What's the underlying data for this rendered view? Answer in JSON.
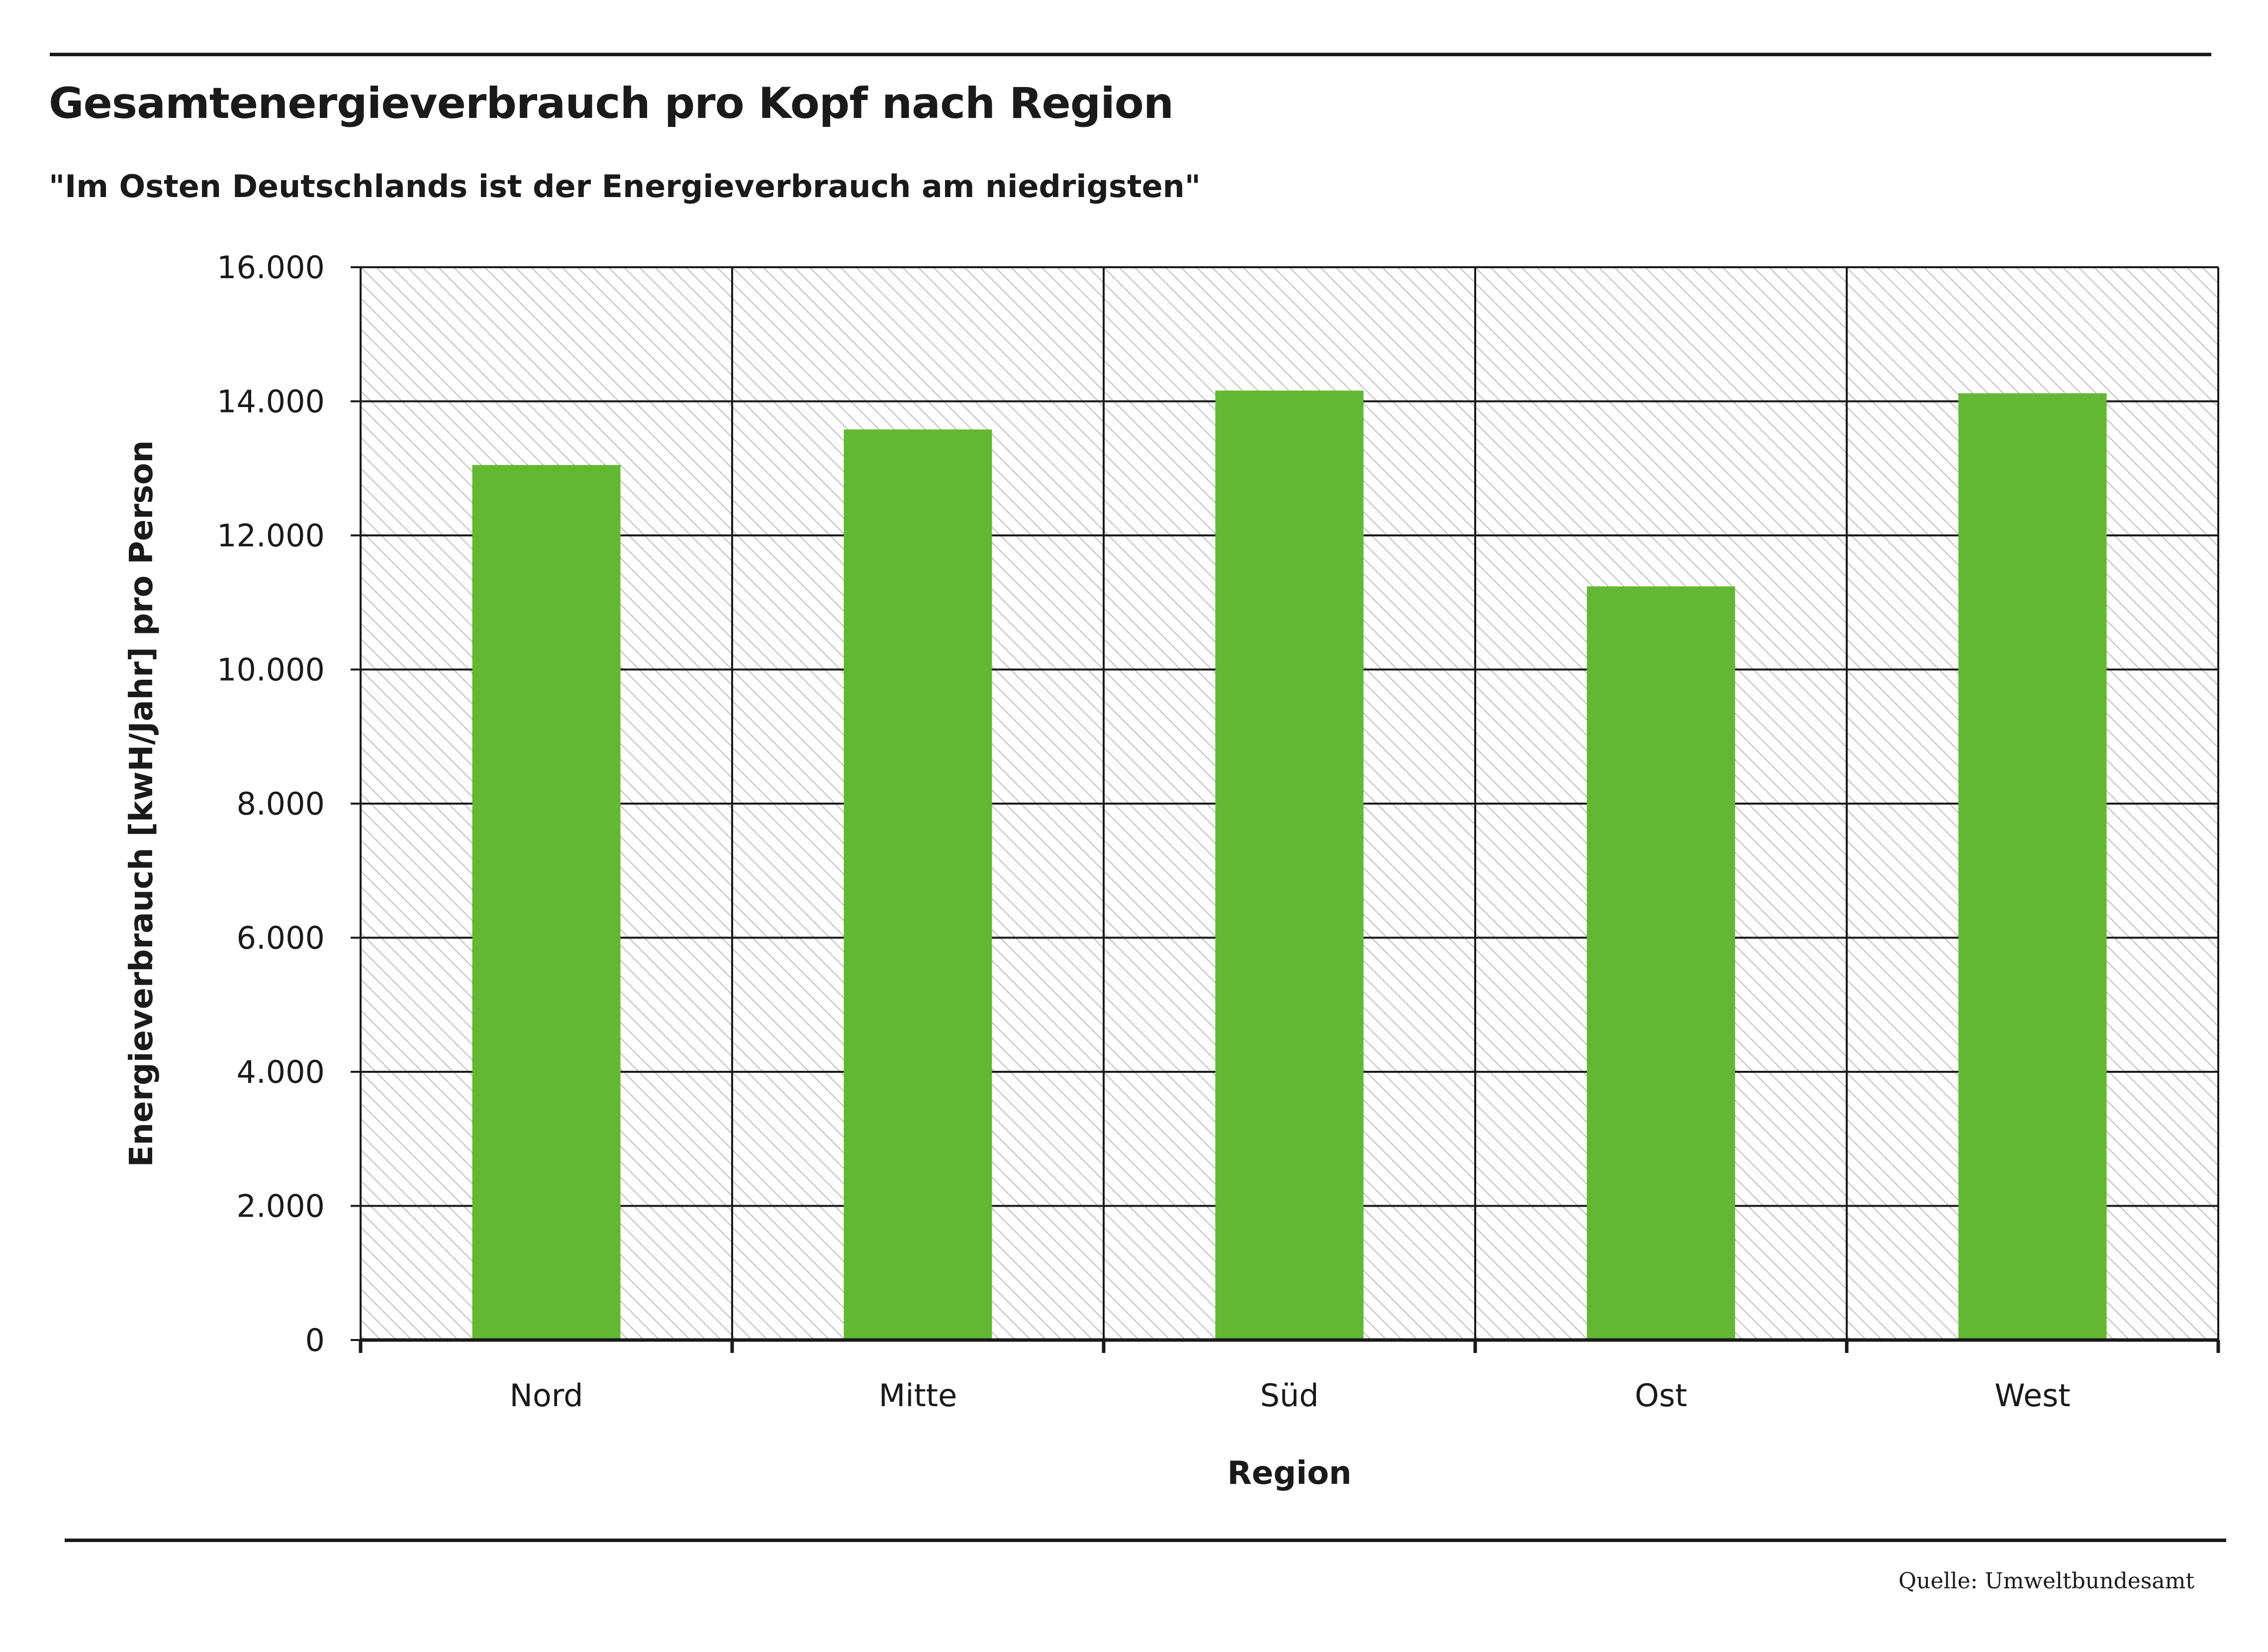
{
  "title": "Gesamtenergieverbrauch pro Kopf nach Region",
  "subtitle": "\"Im Osten Deutschlands ist der Energieverbrauch am niedrigsten\"",
  "source": "Quelle: Umweltbundesamt",
  "colors": {
    "bar": "#62b832",
    "grid": "#1a1a1a",
    "hatch": "#c8c8c8"
  },
  "chart_data": {
    "type": "bar",
    "title": "Gesamtenergieverbrauch pro Kopf nach Region",
    "subtitle": "\"Im Osten Deutschlands ist der Energieverbrauch am niedrigsten\"",
    "xlabel": "Region",
    "ylabel": "Energieverbrauch [kwH/Jahr] pro Person",
    "categories": [
      "Nord",
      "Mitte",
      "Süd",
      "Ost",
      "West"
    ],
    "values": [
      13050,
      13580,
      14160,
      11240,
      14120
    ],
    "ylim": [
      0,
      16000
    ],
    "yticks": [
      0,
      2000,
      4000,
      6000,
      8000,
      10000,
      12000,
      14000,
      16000
    ],
    "ytick_labels": [
      "0",
      "2.000",
      "4.000",
      "6.000",
      "8.000",
      "10.000",
      "12.000",
      "14.000",
      "16.000"
    ],
    "grid": true,
    "legend": "none"
  }
}
